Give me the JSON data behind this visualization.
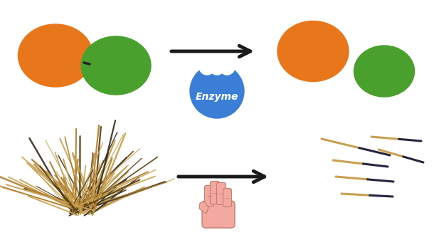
{
  "bg_color": "#ffffff",
  "orange_color": "#E8761A",
  "green_color": "#4aA02c",
  "arrow_color": "#1a1a1a",
  "enzyme_blue": "#3a7fd5",
  "enzyme_text": "Enzyme",
  "enzyme_text_color": "#ffffff",
  "hand_color": "#f4a9a0",
  "hand_outline": "#c08070",
  "toothpick_tan": "#c8a050",
  "toothpick_dark": "#3a3020",
  "scattered_dark": "#252540",
  "scattered_tan": "#c8a050",
  "figsize": [
    6.1,
    3.37
  ],
  "dpi": 100
}
